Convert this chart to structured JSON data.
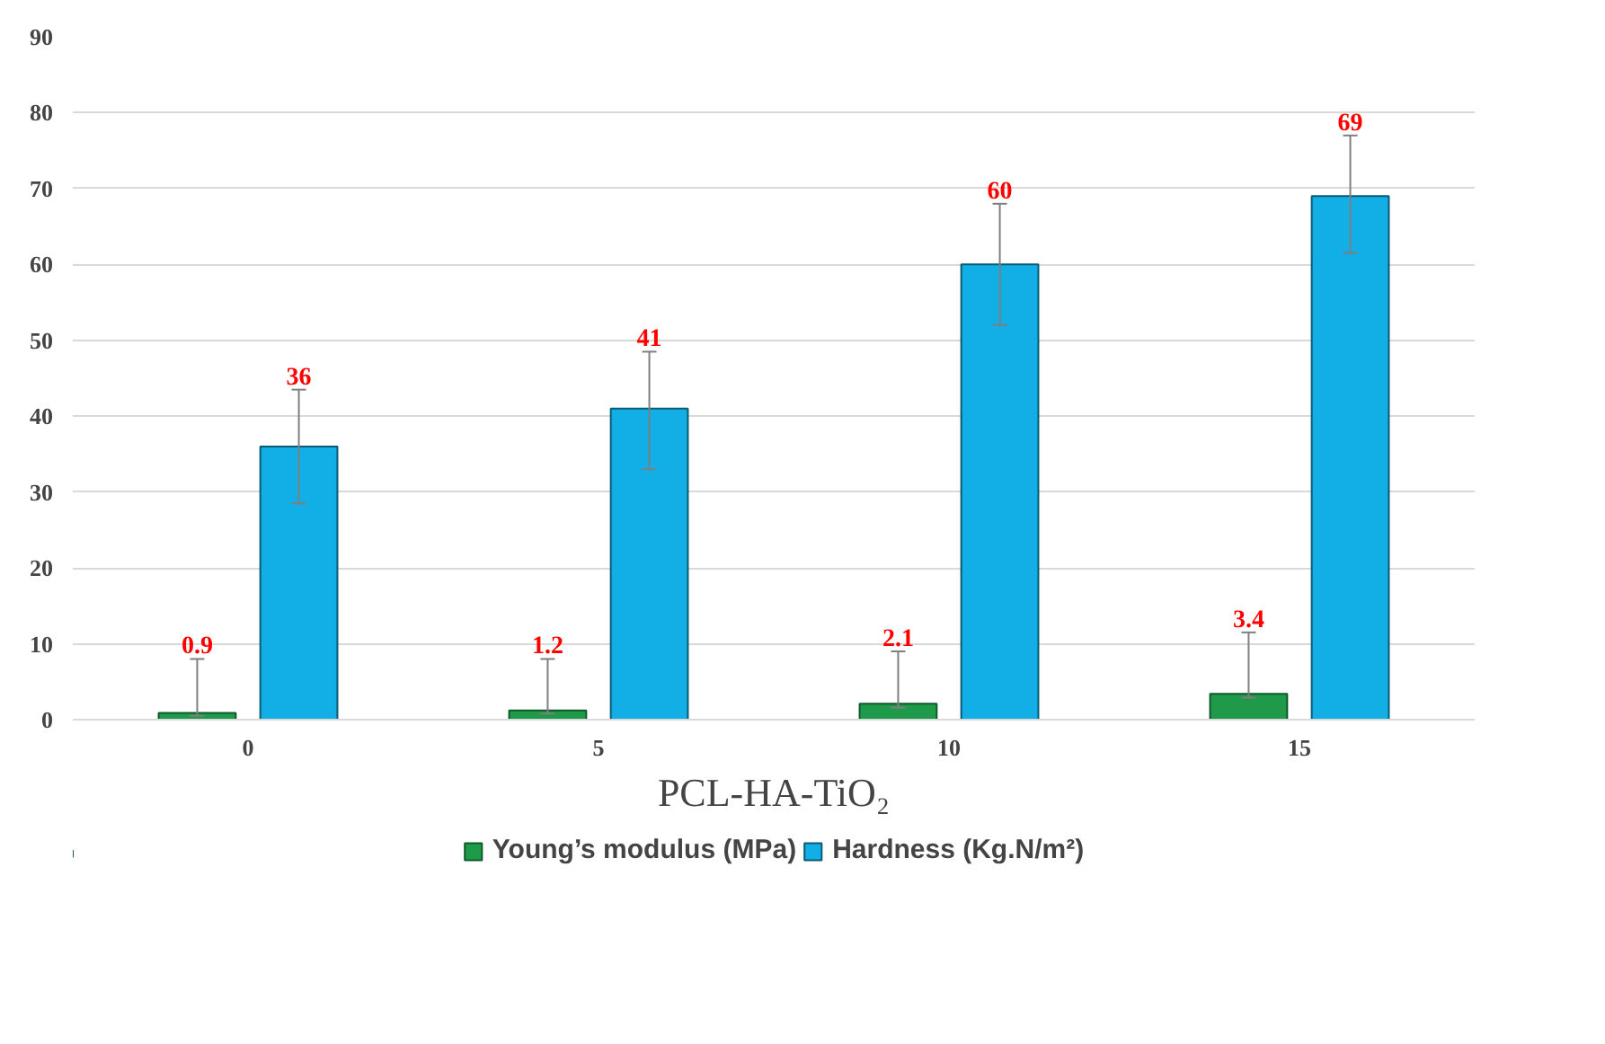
{
  "chart_data": {
    "type": "bar",
    "xlabel": "PCL-HA-TiO₂",
    "categories": [
      "0",
      "5",
      "10",
      "15"
    ],
    "series": [
      {
        "name": "Young’s modulus (MPa)",
        "color": "#1e9a4a",
        "values": [
          0.9,
          1.2,
          2.1,
          3.4
        ],
        "errors": [
          [
            0.5,
            8
          ],
          [
            0.8,
            8
          ],
          [
            1.6,
            9
          ],
          [
            2.9,
            11.5
          ]
        ]
      },
      {
        "name": "Hardness (Kg.N/m²)",
        "color": "#12aee6",
        "values": [
          36,
          41,
          60,
          69
        ],
        "errors": [
          [
            28.5,
            43.5
          ],
          [
            33,
            48.5
          ],
          [
            52,
            68
          ],
          [
            61.5,
            77
          ]
        ]
      }
    ],
    "ylim": [
      0,
      90
    ],
    "yticks": [
      0,
      10,
      20,
      30,
      40,
      50,
      60,
      70,
      80,
      90
    ],
    "grid": "y",
    "legend": "bottom",
    "data_labels": true
  }
}
